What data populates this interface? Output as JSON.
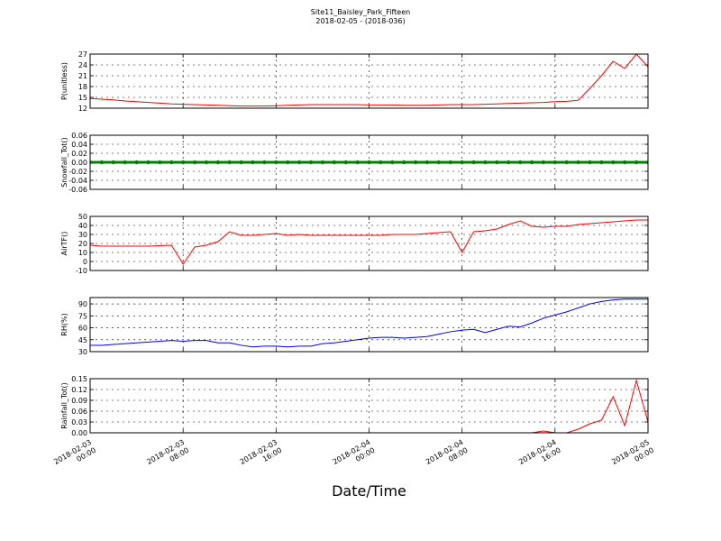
{
  "chart_data": [
    {
      "type": "line",
      "title": "Site11_Baisley_Park_Fifteen",
      "subtitle": "2018-02-05 - (2018-036)",
      "y_label": "P(unitless)",
      "color": "#ff0000",
      "grid": true,
      "x": [
        "2018-02-03 00:00",
        "2018-02-03 01:00",
        "2018-02-03 02:00",
        "2018-02-03 03:00",
        "2018-02-03 04:00",
        "2018-02-03 05:00",
        "2018-02-03 06:00",
        "2018-02-03 07:00",
        "2018-02-03 08:00",
        "2018-02-03 09:00",
        "2018-02-03 10:00",
        "2018-02-03 11:00",
        "2018-02-03 12:00",
        "2018-02-03 13:00",
        "2018-02-03 14:00",
        "2018-02-03 15:00",
        "2018-02-03 16:00",
        "2018-02-03 17:00",
        "2018-02-03 18:00",
        "2018-02-03 19:00",
        "2018-02-03 20:00",
        "2018-02-03 21:00",
        "2018-02-03 22:00",
        "2018-02-03 23:00",
        "2018-02-04 00:00",
        "2018-02-04 01:00",
        "2018-02-04 02:00",
        "2018-02-04 03:00",
        "2018-02-04 04:00",
        "2018-02-04 05:00",
        "2018-02-04 06:00",
        "2018-02-04 07:00",
        "2018-02-04 08:00",
        "2018-02-04 09:00",
        "2018-02-04 10:00",
        "2018-02-04 11:00",
        "2018-02-04 12:00",
        "2018-02-04 13:00",
        "2018-02-04 14:00",
        "2018-02-04 15:00",
        "2018-02-04 16:00",
        "2018-02-04 17:00",
        "2018-02-04 18:00",
        "2018-02-04 19:00",
        "2018-02-04 20:00",
        "2018-02-04 21:00",
        "2018-02-04 22:00",
        "2018-02-04 23:00",
        "2018-02-05 00:00"
      ],
      "values": [
        14.7,
        14.5,
        14.3,
        14.0,
        13.8,
        13.6,
        13.4,
        13.2,
        13.1,
        13.0,
        12.9,
        12.8,
        12.7,
        12.6,
        12.6,
        12.6,
        12.7,
        12.8,
        12.9,
        13.0,
        13.0,
        13.0,
        13.0,
        13.0,
        12.9,
        12.9,
        12.9,
        12.8,
        12.8,
        12.8,
        12.9,
        13.0,
        13.0,
        13.0,
        13.1,
        13.2,
        13.3,
        13.4,
        13.5,
        13.6,
        13.8,
        13.9,
        14.2,
        17.5,
        21.0,
        25.0,
        23.0,
        27.0,
        23.5
      ],
      "xlim": [
        "2018-02-03 00:00",
        "2018-02-05 00:00"
      ],
      "xticks": [
        "2018-02-03 00:00",
        "2018-02-03 08:00",
        "2018-02-03 16:00",
        "2018-02-04 00:00",
        "2018-02-04 08:00",
        "2018-02-04 16:00",
        "2018-02-05 00:00"
      ],
      "ylim": [
        12,
        27
      ],
      "yticks": [
        12,
        15,
        18,
        21,
        24,
        27
      ]
    },
    {
      "type": "line",
      "y_label": "Snowfall_Tot()",
      "color": "#008000",
      "marker": "o",
      "grid": true,
      "x": [
        "2018-02-03 00:00",
        "2018-02-03 01:00",
        "2018-02-03 02:00",
        "2018-02-03 03:00",
        "2018-02-03 04:00",
        "2018-02-03 05:00",
        "2018-02-03 06:00",
        "2018-02-03 07:00",
        "2018-02-03 08:00",
        "2018-02-03 09:00",
        "2018-02-03 10:00",
        "2018-02-03 11:00",
        "2018-02-03 12:00",
        "2018-02-03 13:00",
        "2018-02-03 14:00",
        "2018-02-03 15:00",
        "2018-02-03 16:00",
        "2018-02-03 17:00",
        "2018-02-03 18:00",
        "2018-02-03 19:00",
        "2018-02-03 20:00",
        "2018-02-03 21:00",
        "2018-02-03 22:00",
        "2018-02-03 23:00",
        "2018-02-04 00:00",
        "2018-02-04 01:00",
        "2018-02-04 02:00",
        "2018-02-04 03:00",
        "2018-02-04 04:00",
        "2018-02-04 05:00",
        "2018-02-04 06:00",
        "2018-02-04 07:00",
        "2018-02-04 08:00",
        "2018-02-04 09:00",
        "2018-02-04 10:00",
        "2018-02-04 11:00",
        "2018-02-04 12:00",
        "2018-02-04 13:00",
        "2018-02-04 14:00",
        "2018-02-04 15:00",
        "2018-02-04 16:00",
        "2018-02-04 17:00",
        "2018-02-04 18:00",
        "2018-02-04 19:00",
        "2018-02-04 20:00",
        "2018-02-04 21:00",
        "2018-02-04 22:00",
        "2018-02-04 23:00",
        "2018-02-05 00:00"
      ],
      "values": [
        0,
        0,
        0,
        0,
        0,
        0,
        0,
        0,
        0,
        0,
        0,
        0,
        0,
        0,
        0,
        0,
        0,
        0,
        0,
        0,
        0,
        0,
        0,
        0,
        0,
        0,
        0,
        0,
        0,
        0,
        0,
        0,
        0,
        0,
        0,
        0,
        0,
        0,
        0,
        0,
        0,
        0,
        0,
        0,
        0,
        0,
        0,
        0,
        0
      ],
      "xlim": [
        "2018-02-03 00:00",
        "2018-02-05 00:00"
      ],
      "xticks": [
        "2018-02-03 00:00",
        "2018-02-03 08:00",
        "2018-02-03 16:00",
        "2018-02-04 00:00",
        "2018-02-04 08:00",
        "2018-02-04 16:00",
        "2018-02-05 00:00"
      ],
      "ylim": [
        -0.06,
        0.06
      ],
      "yticks": [
        -0.06,
        -0.04,
        -0.02,
        {
          "value": 0,
          "label": "0.00"
        },
        0.02,
        0.04,
        0.06
      ]
    },
    {
      "type": "line",
      "y_label": "AirTF()",
      "color": "#ff0000",
      "grid": true,
      "x": [
        "2018-02-03 00:00",
        "2018-02-03 01:00",
        "2018-02-03 02:00",
        "2018-02-03 03:00",
        "2018-02-03 04:00",
        "2018-02-03 05:00",
        "2018-02-03 06:00",
        "2018-02-03 07:00",
        "2018-02-03 08:00",
        "2018-02-03 09:00",
        "2018-02-03 10:00",
        "2018-02-03 11:00",
        "2018-02-03 12:00",
        "2018-02-03 13:00",
        "2018-02-03 14:00",
        "2018-02-03 15:00",
        "2018-02-03 16:00",
        "2018-02-03 17:00",
        "2018-02-03 18:00",
        "2018-02-03 19:00",
        "2018-02-03 20:00",
        "2018-02-03 21:00",
        "2018-02-03 22:00",
        "2018-02-03 23:00",
        "2018-02-04 00:00",
        "2018-02-04 01:00",
        "2018-02-04 02:00",
        "2018-02-04 03:00",
        "2018-02-04 04:00",
        "2018-02-04 05:00",
        "2018-02-04 06:00",
        "2018-02-04 07:00",
        "2018-02-04 08:00",
        "2018-02-04 09:00",
        "2018-02-04 10:00",
        "2018-02-04 11:00",
        "2018-02-04 12:00",
        "2018-02-04 13:00",
        "2018-02-04 14:00",
        "2018-02-04 15:00",
        "2018-02-04 16:00",
        "2018-02-04 17:00",
        "2018-02-04 18:00",
        "2018-02-04 19:00",
        "2018-02-04 20:00",
        "2018-02-04 21:00",
        "2018-02-04 22:00",
        "2018-02-04 23:00",
        "2018-02-05 00:00"
      ],
      "values": [
        18,
        17,
        17,
        17,
        17,
        17,
        17.5,
        18,
        -3,
        16,
        18,
        22,
        33,
        29,
        29,
        30,
        31,
        29,
        30,
        29,
        29,
        29,
        29,
        29,
        29,
        29,
        30,
        30,
        30,
        31,
        32,
        33,
        10,
        33,
        34,
        36,
        41,
        45,
        39,
        38,
        39,
        39,
        41,
        42,
        43,
        44,
        45,
        46,
        46
      ],
      "xlim": [
        "2018-02-03 00:00",
        "2018-02-05 00:00"
      ],
      "xticks": [
        "2018-02-03 00:00",
        "2018-02-03 08:00",
        "2018-02-03 16:00",
        "2018-02-04 00:00",
        "2018-02-04 08:00",
        "2018-02-04 16:00",
        "2018-02-05 00:00"
      ],
      "ylim": [
        -10,
        50
      ],
      "yticks": [
        -10,
        0,
        10,
        20,
        30,
        40,
        50
      ]
    },
    {
      "type": "line",
      "y_label": "RH(%)",
      "color": "#0000ff",
      "grid": true,
      "x": [
        "2018-02-03 00:00",
        "2018-02-03 01:00",
        "2018-02-03 02:00",
        "2018-02-03 03:00",
        "2018-02-03 04:00",
        "2018-02-03 05:00",
        "2018-02-03 06:00",
        "2018-02-03 07:00",
        "2018-02-03 08:00",
        "2018-02-03 09:00",
        "2018-02-03 10:00",
        "2018-02-03 11:00",
        "2018-02-03 12:00",
        "2018-02-03 13:00",
        "2018-02-03 14:00",
        "2018-02-03 15:00",
        "2018-02-03 16:00",
        "2018-02-03 17:00",
        "2018-02-03 18:00",
        "2018-02-03 19:00",
        "2018-02-03 20:00",
        "2018-02-03 21:00",
        "2018-02-03 22:00",
        "2018-02-03 23:00",
        "2018-02-04 00:00",
        "2018-02-04 01:00",
        "2018-02-04 02:00",
        "2018-02-04 03:00",
        "2018-02-04 04:00",
        "2018-02-04 05:00",
        "2018-02-04 06:00",
        "2018-02-04 07:00",
        "2018-02-04 08:00",
        "2018-02-04 09:00",
        "2018-02-04 10:00",
        "2018-02-04 11:00",
        "2018-02-04 12:00",
        "2018-02-04 13:00",
        "2018-02-04 14:00",
        "2018-02-04 15:00",
        "2018-02-04 16:00",
        "2018-02-04 17:00",
        "2018-02-04 18:00",
        "2018-02-04 19:00",
        "2018-02-04 20:00",
        "2018-02-04 21:00",
        "2018-02-04 22:00",
        "2018-02-04 23:00",
        "2018-02-05 00:00"
      ],
      "values": [
        38,
        38,
        39,
        40,
        41,
        42,
        43,
        44,
        43,
        44,
        44,
        41,
        41,
        38,
        36,
        37,
        37,
        36,
        37,
        37,
        40,
        41,
        43,
        45,
        47,
        48,
        48,
        47,
        48,
        49,
        52,
        55,
        57,
        58,
        54,
        58,
        62,
        61,
        66,
        72,
        76,
        80,
        85,
        90,
        93,
        95,
        96,
        96,
        96
      ],
      "xlim": [
        "2018-02-03 00:00",
        "2018-02-05 00:00"
      ],
      "xticks": [
        "2018-02-03 00:00",
        "2018-02-03 08:00",
        "2018-02-03 16:00",
        "2018-02-04 00:00",
        "2018-02-04 08:00",
        "2018-02-04 16:00",
        "2018-02-05 00:00"
      ],
      "ylim": [
        30,
        98
      ],
      "yticks": [
        30,
        45,
        60,
        75,
        90
      ]
    },
    {
      "type": "line",
      "y_label": "Rainfall_Tot()",
      "x_label": "Date/Time",
      "color": "#ff0000",
      "grid": true,
      "x": [
        "2018-02-03 00:00",
        "2018-02-03 01:00",
        "2018-02-03 02:00",
        "2018-02-03 03:00",
        "2018-02-03 04:00",
        "2018-02-03 05:00",
        "2018-02-03 06:00",
        "2018-02-03 07:00",
        "2018-02-03 08:00",
        "2018-02-03 09:00",
        "2018-02-03 10:00",
        "2018-02-03 11:00",
        "2018-02-03 12:00",
        "2018-02-03 13:00",
        "2018-02-03 14:00",
        "2018-02-03 15:00",
        "2018-02-03 16:00",
        "2018-02-03 17:00",
        "2018-02-03 18:00",
        "2018-02-03 19:00",
        "2018-02-03 20:00",
        "2018-02-03 21:00",
        "2018-02-03 22:00",
        "2018-02-03 23:00",
        "2018-02-04 00:00",
        "2018-02-04 01:00",
        "2018-02-04 02:00",
        "2018-02-04 03:00",
        "2018-02-04 04:00",
        "2018-02-04 05:00",
        "2018-02-04 06:00",
        "2018-02-04 07:00",
        "2018-02-04 08:00",
        "2018-02-04 09:00",
        "2018-02-04 10:00",
        "2018-02-04 11:00",
        "2018-02-04 12:00",
        "2018-02-04 13:00",
        "2018-02-04 14:00",
        "2018-02-04 15:00",
        "2018-02-04 16:00",
        "2018-02-04 17:00",
        "2018-02-04 18:00",
        "2018-02-04 19:00",
        "2018-02-04 20:00",
        "2018-02-04 21:00",
        "2018-02-04 22:00",
        "2018-02-04 23:00",
        "2018-02-05 00:00"
      ],
      "values": [
        0,
        0,
        0,
        0,
        0,
        0,
        0,
        0,
        0,
        0,
        0,
        0,
        0,
        0,
        0,
        0,
        0,
        0,
        0,
        0,
        0,
        0,
        0,
        0,
        0,
        0,
        0,
        0,
        0,
        0,
        0,
        0,
        0,
        0,
        0,
        0,
        0,
        0,
        0,
        0.005,
        0,
        0,
        0.01,
        0.025,
        0.035,
        0.1,
        0.02,
        0.145,
        0.03
      ],
      "xlim": [
        "2018-02-03 00:00",
        "2018-02-05 00:00"
      ],
      "xticks": [
        "2018-02-03 00:00",
        "2018-02-03 08:00",
        "2018-02-03 16:00",
        "2018-02-04 00:00",
        "2018-02-04 08:00",
        "2018-02-04 16:00",
        "2018-02-05 00:00"
      ],
      "ylim": [
        0,
        0.15
      ],
      "yticks": [
        {
          "value": 0,
          "label": "0.00"
        },
        0.03,
        0.06,
        0.09,
        0.12,
        0.15
      ]
    }
  ]
}
